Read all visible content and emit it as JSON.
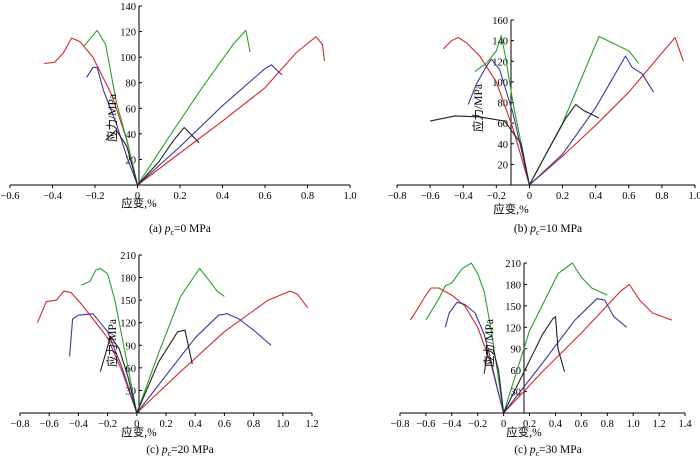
{
  "chart_data": [
    {
      "type": "line",
      "xlabel": "应变,%",
      "ylabel": "应力/MPa",
      "caption": {
        "prefix": "(a) ",
        "var": "p",
        "sub": "c",
        "value": "=0 MPa"
      },
      "xlim": [
        -0.6,
        1.0
      ],
      "ylim": [
        0,
        140
      ],
      "xticks": [
        "−0.6",
        "−0.4",
        "−0.2",
        "0",
        "0.2",
        "0.4",
        "0.6",
        "0.8",
        "1.0"
      ],
      "yticks": [
        "20",
        "40",
        "60",
        "80",
        "100",
        "120",
        "140"
      ],
      "series": [
        {
          "color": "#d62728",
          "x": [
            -0.44,
            -0.39,
            -0.35,
            -0.31,
            -0.27,
            -0.21,
            -0.12,
            -0.05,
            0,
            0.2,
            0.4,
            0.6,
            0.75,
            0.84,
            0.87,
            0.88
          ],
          "y": [
            95,
            96,
            103,
            115,
            112,
            100,
            70,
            35,
            0,
            25,
            50,
            76,
            104,
            116,
            110,
            97
          ]
        },
        {
          "color": "#2ca02c",
          "x": [
            -0.25,
            -0.19,
            -0.15,
            -0.1,
            -0.05,
            0,
            0.15,
            0.3,
            0.45,
            0.51,
            0.53
          ],
          "y": [
            109,
            121,
            110,
            65,
            35,
            0,
            38,
            75,
            110,
            121,
            104
          ]
        },
        {
          "color": "#3a3a9a",
          "x": [
            -0.24,
            -0.21,
            -0.19,
            -0.16,
            -0.1,
            -0.05,
            0,
            0.2,
            0.4,
            0.6,
            0.63,
            0.68
          ],
          "y": [
            84,
            92,
            92,
            74,
            48,
            22,
            0,
            30,
            62,
            91,
            94,
            86
          ]
        },
        {
          "color": "#222222",
          "x": [
            -0.15,
            -0.1,
            -0.05,
            0,
            0.1,
            0.17,
            0.22,
            0.29
          ],
          "y": [
            35,
            43,
            30,
            0,
            18,
            35,
            45,
            33
          ]
        }
      ]
    },
    {
      "type": "line",
      "xlabel": "应变,%",
      "ylabel": "应力/MPa",
      "caption": {
        "prefix": "(b) ",
        "var": "p",
        "sub": "c",
        "value": "=10 MPa"
      },
      "xlim": [
        -0.8,
        1.0
      ],
      "ylim": [
        0,
        160
      ],
      "xticks": [
        "−0.8",
        "−0.6",
        "−0.4",
        "−0.2",
        "0",
        "0.2",
        "0.4",
        "0.6",
        "0.8",
        "1.0"
      ],
      "yticks": [
        "20",
        "40",
        "60",
        "80",
        "100",
        "120",
        "140",
        "160"
      ],
      "series": [
        {
          "color": "#d62728",
          "x": [
            -0.52,
            -0.47,
            -0.43,
            -0.38,
            -0.3,
            -0.2,
            -0.1,
            0,
            0.2,
            0.4,
            0.6,
            0.8,
            0.88,
            0.93
          ],
          "y": [
            132,
            140,
            143,
            138,
            125,
            100,
            55,
            0,
            28,
            58,
            90,
            128,
            143,
            120
          ]
        },
        {
          "color": "#2ca02c",
          "x": [
            -0.33,
            -0.26,
            -0.2,
            -0.17,
            -0.14,
            -0.1,
            -0.05,
            0,
            0.2,
            0.42,
            0.5,
            0.6,
            0.66
          ],
          "y": [
            110,
            118,
            130,
            145,
            120,
            80,
            40,
            0,
            60,
            144,
            138,
            130,
            118
          ]
        },
        {
          "color": "#3a3a9a",
          "x": [
            -0.37,
            -0.32,
            -0.26,
            -0.23,
            -0.18,
            -0.1,
            0,
            0.2,
            0.4,
            0.58,
            0.62,
            0.68,
            0.75
          ],
          "y": [
            78,
            98,
            115,
            122,
            112,
            70,
            0,
            30,
            75,
            125,
            114,
            108,
            90
          ]
        },
        {
          "color": "#222222",
          "x": [
            -0.6,
            -0.45,
            -0.3,
            -0.15,
            -0.05,
            0,
            0.1,
            0.22,
            0.28,
            0.33,
            0.42
          ],
          "y": [
            62,
            67,
            66,
            62,
            40,
            0,
            30,
            65,
            78,
            72,
            65
          ]
        }
      ]
    },
    {
      "type": "line",
      "xlabel": "应变,%",
      "ylabel": "应力/MPa",
      "caption": {
        "prefix": "(c) ",
        "var": "p",
        "sub": "c",
        "value": "=20 MPa"
      },
      "xlim": [
        -0.8,
        1.2
      ],
      "ylim": [
        0,
        210
      ],
      "xticks": [
        "−0.8",
        "−0.6",
        "−0.4",
        "−0.2",
        "0",
        "0.2",
        "0.4",
        "0.6",
        "0.8",
        "1.0",
        "1.2"
      ],
      "yticks": [
        "30",
        "60",
        "90",
        "120",
        "150",
        "180",
        "210"
      ],
      "series": [
        {
          "color": "#d62728",
          "x": [
            -0.68,
            -0.62,
            -0.55,
            -0.5,
            -0.45,
            -0.38,
            -0.3,
            -0.2,
            -0.1,
            0,
            0.3,
            0.6,
            0.9,
            1.05,
            1.1,
            1.17
          ],
          "y": [
            120,
            148,
            150,
            162,
            160,
            145,
            125,
            100,
            55,
            0,
            55,
            108,
            150,
            162,
            158,
            140
          ]
        },
        {
          "color": "#2ca02c",
          "x": [
            -0.38,
            -0.32,
            -0.28,
            -0.25,
            -0.2,
            -0.15,
            -0.1,
            -0.05,
            0,
            0.15,
            0.3,
            0.43,
            0.48,
            0.55,
            0.6
          ],
          "y": [
            170,
            175,
            190,
            192,
            185,
            150,
            100,
            50,
            0,
            80,
            155,
            192,
            180,
            162,
            155
          ]
        },
        {
          "color": "#3a3a9a",
          "x": [
            -0.46,
            -0.44,
            -0.4,
            -0.3,
            -0.2,
            -0.1,
            0,
            0.2,
            0.4,
            0.56,
            0.62,
            0.7,
            0.8,
            0.92
          ],
          "y": [
            75,
            125,
            130,
            132,
            108,
            60,
            0,
            50,
            100,
            130,
            132,
            125,
            110,
            90
          ]
        },
        {
          "color": "#222222",
          "x": [
            -0.25,
            -0.22,
            -0.18,
            -0.12,
            -0.06,
            0,
            0.15,
            0.28,
            0.33,
            0.38
          ],
          "y": [
            55,
            75,
            102,
            85,
            48,
            0,
            68,
            108,
            110,
            65
          ]
        }
      ]
    },
    {
      "type": "line",
      "xlabel": "应变,%",
      "ylabel": "应力/MPa",
      "caption": {
        "prefix": "(c) ",
        "var": "p",
        "sub": "c",
        "value": "=30 MPa"
      },
      "xlim": [
        -0.8,
        1.4
      ],
      "ylim": [
        0,
        210
      ],
      "xticks": [
        "−0.8",
        "−0.6",
        "−0.4",
        "−0.2",
        "0",
        "0.2",
        "0.4",
        "0.6",
        "0.8",
        "1.0",
        "1.2",
        "1.4"
      ],
      "yticks": [
        "30",
        "60",
        "90",
        "120",
        "150",
        "180",
        "210"
      ],
      "series": [
        {
          "color": "#d62728",
          "x": [
            -0.72,
            -0.65,
            -0.6,
            -0.56,
            -0.5,
            -0.4,
            -0.3,
            -0.2,
            -0.1,
            0,
            0.3,
            0.6,
            0.9,
            0.97,
            1.05,
            1.15,
            1.3
          ],
          "y": [
            130,
            150,
            165,
            175,
            175,
            165,
            150,
            120,
            70,
            0,
            58,
            112,
            170,
            180,
            158,
            140,
            130
          ]
        },
        {
          "color": "#2ca02c",
          "x": [
            -0.6,
            -0.5,
            -0.45,
            -0.4,
            -0.32,
            -0.25,
            -0.2,
            -0.15,
            -0.1,
            -0.05,
            0,
            0.2,
            0.42,
            0.53,
            0.6,
            0.68,
            0.8
          ],
          "y": [
            130,
            160,
            178,
            182,
            202,
            210,
            195,
            170,
            120,
            60,
            0,
            115,
            195,
            210,
            190,
            175,
            165
          ]
        },
        {
          "color": "#3a3a9a",
          "x": [
            -0.45,
            -0.42,
            -0.36,
            -0.3,
            -0.22,
            -0.15,
            -0.1,
            -0.05,
            0,
            0.3,
            0.55,
            0.72,
            0.78,
            0.85,
            0.95
          ],
          "y": [
            120,
            140,
            155,
            152,
            140,
            110,
            75,
            35,
            0,
            70,
            130,
            160,
            158,
            135,
            120
          ]
        },
        {
          "color": "#222222",
          "x": [
            -0.15,
            -0.12,
            -0.08,
            -0.04,
            0,
            0.15,
            0.3,
            0.38,
            0.4,
            0.42,
            0.47
          ],
          "y": [
            55,
            90,
            88,
            60,
            0,
            55,
            110,
            132,
            135,
            90,
            58
          ]
        }
      ]
    }
  ]
}
